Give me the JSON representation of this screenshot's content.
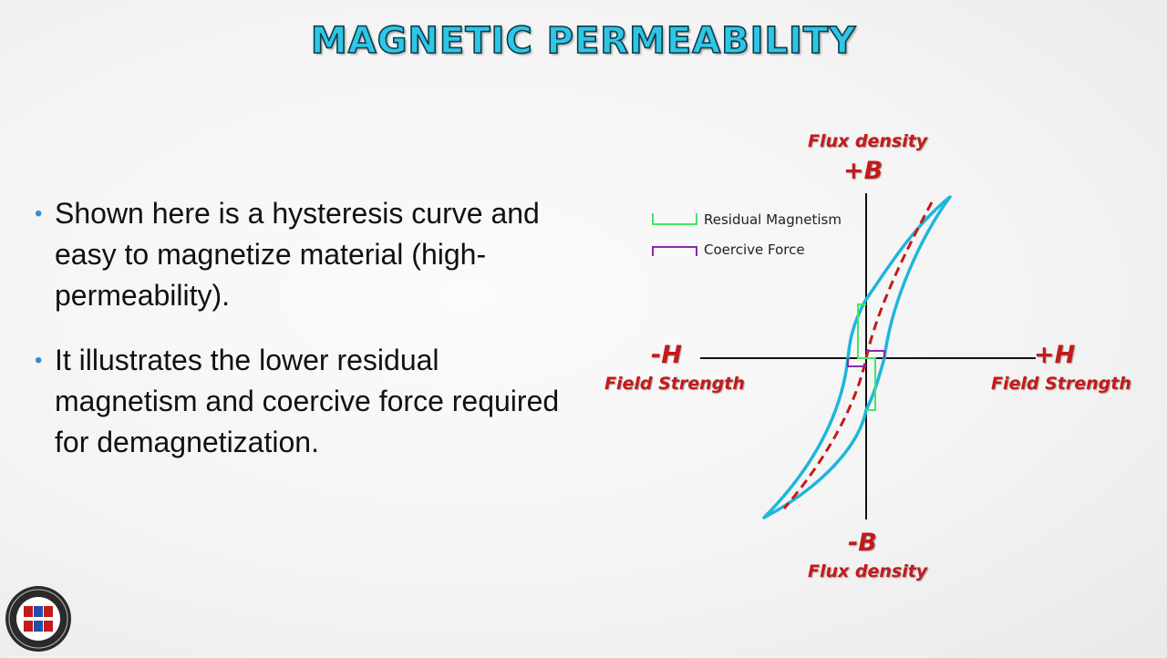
{
  "title": "MAGNETIC PERMEABILITY",
  "bullets": [
    "Shown here is a hysteresis curve and easy to magnetize material (high-permeability).",
    "It illustrates the lower residual magnetism and coercive force required for demagnetization."
  ],
  "diagram": {
    "top_caption": "Flux density",
    "plus_b": "+B",
    "minus_b": "-B",
    "bottom_caption": "Flux density",
    "minus_h": "-H",
    "plus_h": "+H",
    "left_caption": "Field Strength",
    "right_caption": "Field Strength",
    "legend": [
      {
        "label": "Residual Magnetism",
        "color": "#3ee860"
      },
      {
        "label": "Coercive Force",
        "color": "#8a2aa8"
      }
    ],
    "colors": {
      "loop": "#1fb6dc",
      "initial_curve": "#c51a1a",
      "axis": "#111111"
    }
  },
  "logo": {
    "icon": "nia-seal-icon"
  }
}
